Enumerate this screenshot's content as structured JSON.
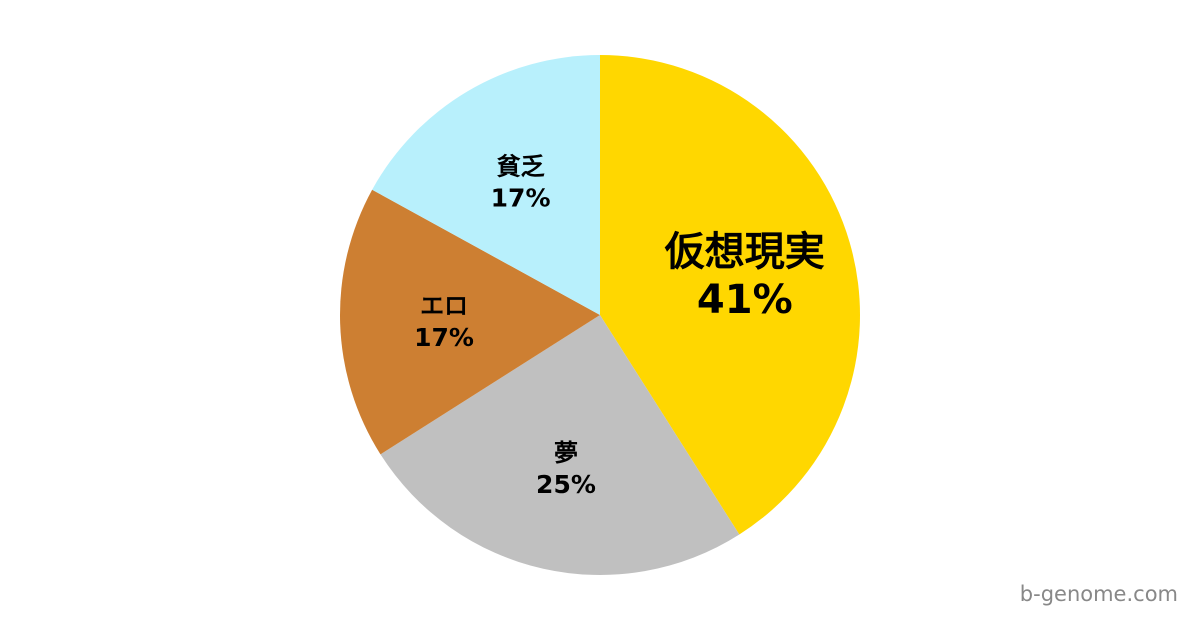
{
  "chart_data": {
    "type": "pie",
    "start_angle": "top",
    "direction": "clockwise",
    "slices": [
      {
        "label": "仮想現実",
        "value": 41,
        "value_label": "41%",
        "color": "#FFD700",
        "emphasized": true
      },
      {
        "label": "夢",
        "value": 25,
        "value_label": "25%",
        "color": "#C0C0C0"
      },
      {
        "label": "エロ",
        "value": 17,
        "value_label": "17%",
        "color": "#CD7F32"
      },
      {
        "label": "貧乏",
        "value": 17,
        "value_label": "17%",
        "color": "#B8F0FC"
      }
    ]
  },
  "watermark": "b-genome.com"
}
